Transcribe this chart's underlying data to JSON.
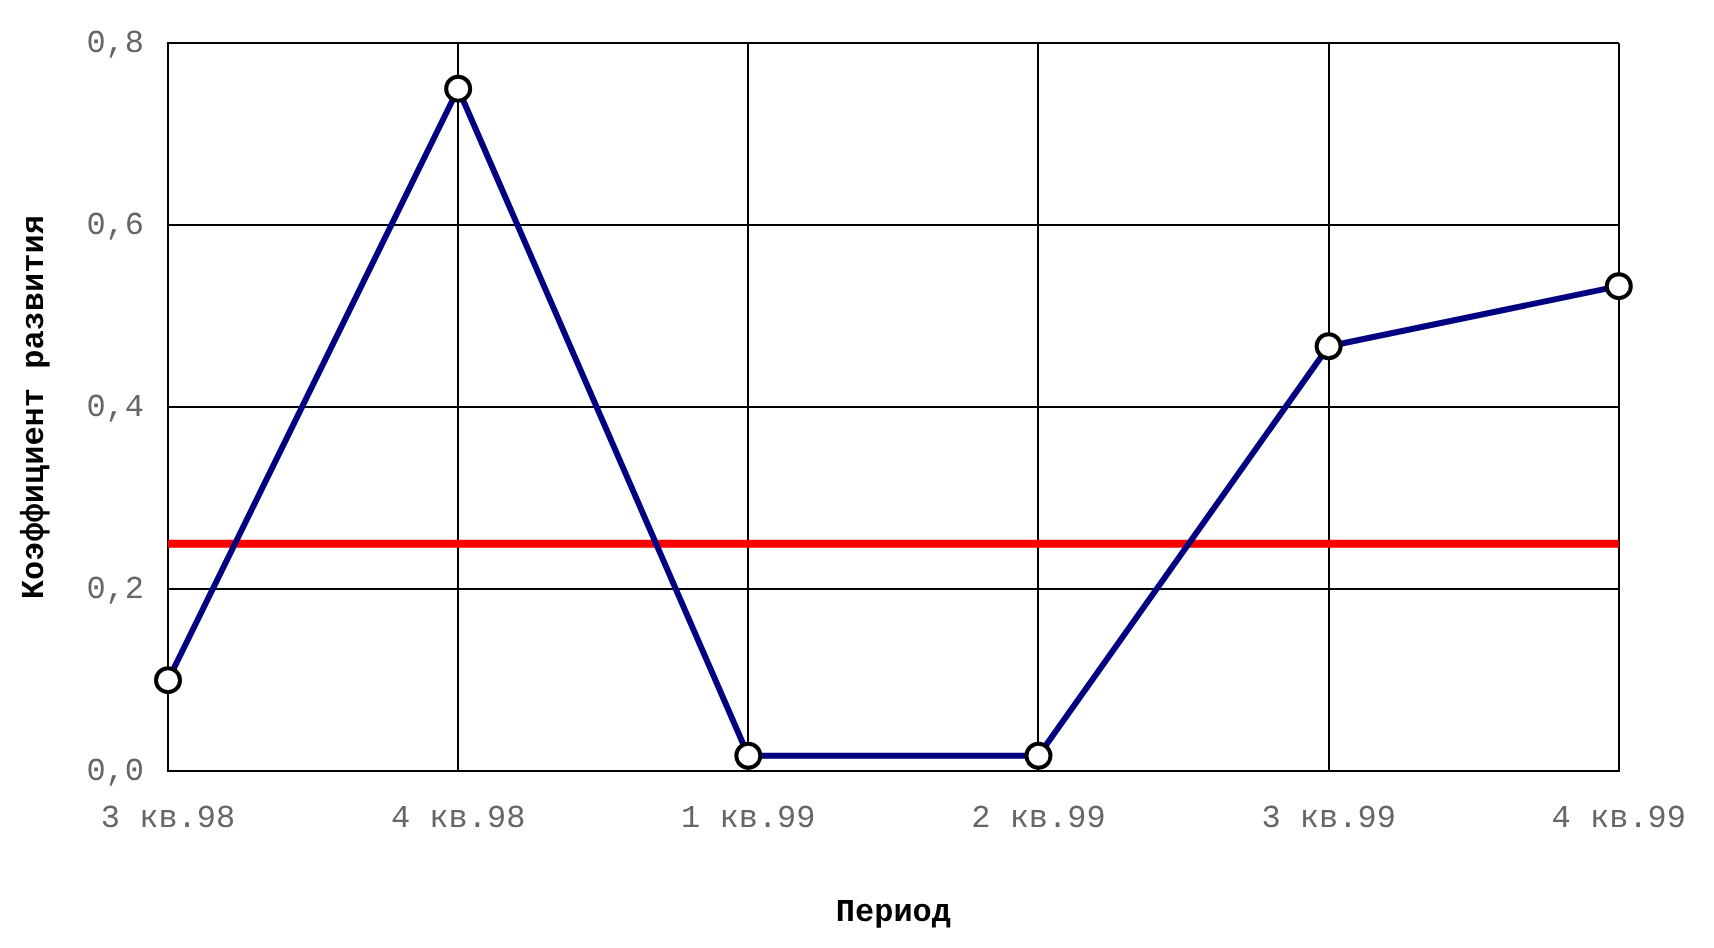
{
  "chart_data": {
    "type": "line",
    "xlabel": "Период",
    "ylabel": "Коэффициент развития",
    "categories": [
      "3 кв.98",
      "4 кв.98",
      "1 кв.99",
      "2 кв.99",
      "3 кв.99",
      "4 кв.99"
    ],
    "series": [
      {
        "color": "#000080",
        "values": [
          0.1,
          0.75,
          0.017,
          0.017,
          0.467,
          0.533
        ]
      }
    ],
    "ylim": [
      0,
      0.8
    ],
    "yticks": [
      {
        "value": 0,
        "label": "0,0"
      },
      {
        "value": 0.2,
        "label": "0,2"
      },
      {
        "value": 0.4,
        "label": "0,4"
      },
      {
        "value": 0.6,
        "label": "0,6"
      },
      {
        "value": 0.8,
        "label": "0,8"
      }
    ],
    "ref_lines": [
      {
        "axis": "y",
        "value": 0.25,
        "color": "#ff0000"
      }
    ],
    "grid": true,
    "marker": "circle",
    "line_style": "solid",
    "legend": false
  }
}
